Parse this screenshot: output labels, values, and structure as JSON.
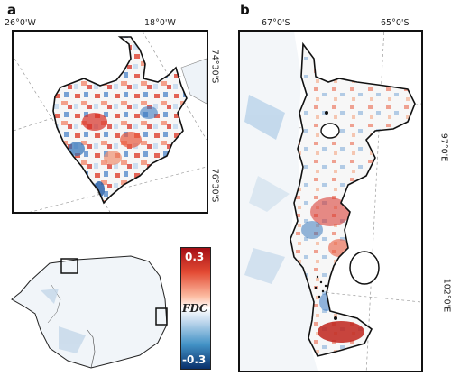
{
  "panels": {
    "a": {
      "label": "a",
      "lon_left": "26°0'W",
      "lon_right": "18°0'W",
      "lat_top": "74°30'S",
      "lat_bottom": "76°30'S"
    },
    "b": {
      "label": "b",
      "lat_left": "67°0'S",
      "lat_right": "65°0'S",
      "lon_top": "97°0'E",
      "lon_bottom": "102°0'E"
    }
  },
  "colorbar": {
    "max_label": "0.3",
    "min_label": "-0.3",
    "title": "FDC",
    "colors": {
      "max": "#a50f15",
      "mid": "#ffffff",
      "min": "#08306b"
    }
  },
  "colors": {
    "positive": "#d73027",
    "negative": "#2c6fb7",
    "outline": "#111111",
    "grid": "#9a9a9a"
  }
}
